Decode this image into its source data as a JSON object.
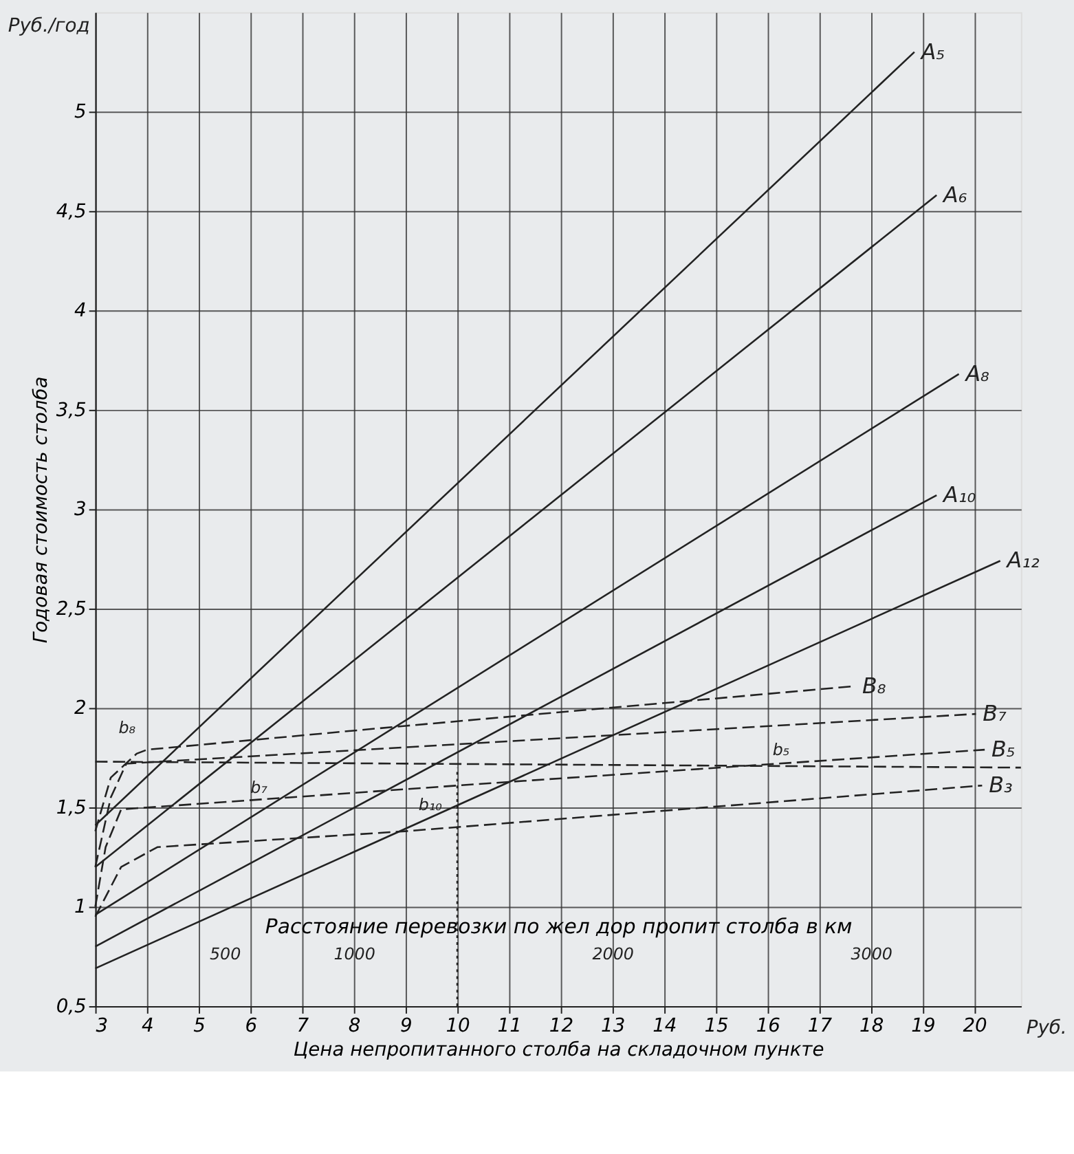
{
  "chart_data": {
    "type": "line",
    "xlabel": "Цена непропитанного столба на складочном пункте",
    "ylabel": "Годовая стоимость столба",
    "x2label": "Расстояние перевозки по жел дор пропит столба в км",
    "xlim": [
      3,
      20.9
    ],
    "ylim": [
      0.5,
      5.5
    ],
    "xticks": [
      3,
      4,
      5,
      6,
      7,
      8,
      9,
      10,
      11,
      12,
      13,
      14,
      15,
      16,
      17,
      18,
      19,
      20
    ],
    "yticks": [
      {
        "value": 0.5,
        "label": "0,5"
      },
      1,
      {
        "value": 1.5,
        "label": "1,5"
      },
      2,
      {
        "value": 2.5,
        "label": "2,5"
      },
      3,
      {
        "value": 3.5,
        "label": "3,5"
      },
      4,
      {
        "value": 4.5,
        "label": "4,5"
      },
      5
    ],
    "x2lim": [
      0,
      3580
    ],
    "x2ticks": [
      500,
      1000,
      2000,
      3000
    ],
    "grid": true,
    "legend": false,
    "marker": "none",
    "series": [
      {
        "name": "A₅",
        "color": "#222222",
        "line_style": "solid",
        "x": [
          3,
          18.84
        ],
        "values": [
          1.41,
          5.3
        ]
      },
      {
        "name": "A₆",
        "color": "#222222",
        "line_style": "solid",
        "x": [
          3,
          19.27
        ],
        "values": [
          1.2,
          4.58
        ]
      },
      {
        "name": "A₈",
        "color": "#222222",
        "line_style": "solid",
        "x": [
          3,
          19.7
        ],
        "values": [
          0.96,
          3.68
        ]
      },
      {
        "name": "A₁₀",
        "color": "#222222",
        "line_style": "solid",
        "x": [
          3,
          19.27
        ],
        "values": [
          0.8,
          3.07
        ]
      },
      {
        "name": "A₁₂",
        "color": "#222222",
        "line_style": "solid",
        "x": [
          3,
          20.5
        ],
        "values": [
          0.69,
          2.74
        ]
      },
      {
        "name": "B₈",
        "color": "#222222",
        "line_style": "dashed",
        "x": [
          3,
          3.3,
          3.8,
          4,
          9,
          17.7
        ],
        "values": [
          1.38,
          1.65,
          1.77,
          1.79,
          1.91,
          2.11
        ]
      },
      {
        "name": "B₇",
        "color": "#222222",
        "line_style": "dashed",
        "x": [
          3,
          3.3,
          3.6,
          20.03
        ],
        "values": [
          1.2,
          1.55,
          1.72,
          1.97
        ]
      },
      {
        "name": "B₅",
        "color": "#222222",
        "line_style": "dashed",
        "x": [
          3,
          3.2,
          3.5,
          11.1,
          20.2
        ],
        "values": [
          1.0,
          1.3,
          1.49,
          1.63,
          1.79
        ]
      },
      {
        "name": "B₃",
        "color": "#222222",
        "line_style": "dashed",
        "x": [
          3,
          3.5,
          4.2,
          9,
          20.15
        ],
        "values": [
          0.95,
          1.2,
          1.3,
          1.38,
          1.61
        ]
      },
      {
        "color": "#222222",
        "line_style": "dashed",
        "x": [
          3,
          20.9
        ],
        "values": [
          1.73,
          1.7
        ]
      },
      {
        "color": "#222222",
        "line_style": "dotted",
        "x": [
          10,
          10
        ],
        "values": [
          0.5,
          1.7
        ]
      }
    ],
    "annotations": [
      "Руб./год",
      "Руб.",
      "b₈",
      "b₇",
      "b₁₀",
      "b₅"
    ]
  }
}
